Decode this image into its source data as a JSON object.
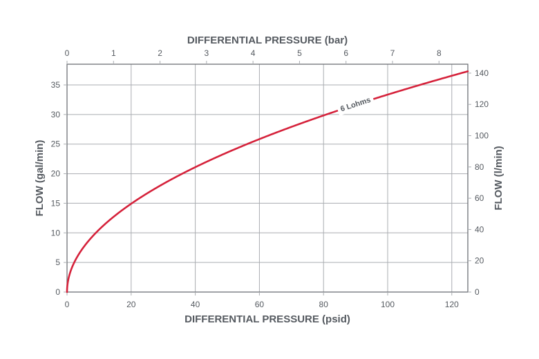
{
  "chart_data": {
    "type": "line",
    "title": "",
    "x_bottom": {
      "label": "DIFFERENTIAL PRESSURE (psid)",
      "lim": [
        0,
        125
      ],
      "ticks": [
        0,
        20,
        40,
        60,
        80,
        100,
        120
      ]
    },
    "x_top": {
      "label": "DIFFERENTIAL PRESSURE (bar)",
      "lim": [
        0,
        8.62
      ],
      "ticks": [
        0,
        1,
        2,
        3,
        4,
        5,
        6,
        7,
        8
      ]
    },
    "y_left": {
      "label": "FLOW (gal/min)",
      "lim": [
        0,
        38.5
      ],
      "ticks": [
        0,
        5,
        10,
        15,
        20,
        25,
        30,
        35
      ]
    },
    "y_right": {
      "label": "FLOW (l/min)",
      "lim": [
        0,
        145.7
      ],
      "ticks": [
        0,
        20,
        40,
        60,
        80,
        100,
        120,
        140
      ]
    },
    "grid": true,
    "series": [
      {
        "name": "6 Lohms",
        "color": "#d5213a",
        "x": [
          0,
          1,
          2,
          5,
          10,
          15,
          20,
          30,
          40,
          50,
          60,
          70,
          80,
          90,
          100,
          110,
          120,
          125
        ],
        "y": [
          0,
          3.33,
          4.71,
          7.45,
          10.5,
          12.9,
          14.9,
          18.3,
          21.1,
          23.6,
          25.8,
          27.9,
          29.8,
          31.6,
          33.3,
          34.9,
          36.5,
          37.3
        ]
      }
    ]
  }
}
